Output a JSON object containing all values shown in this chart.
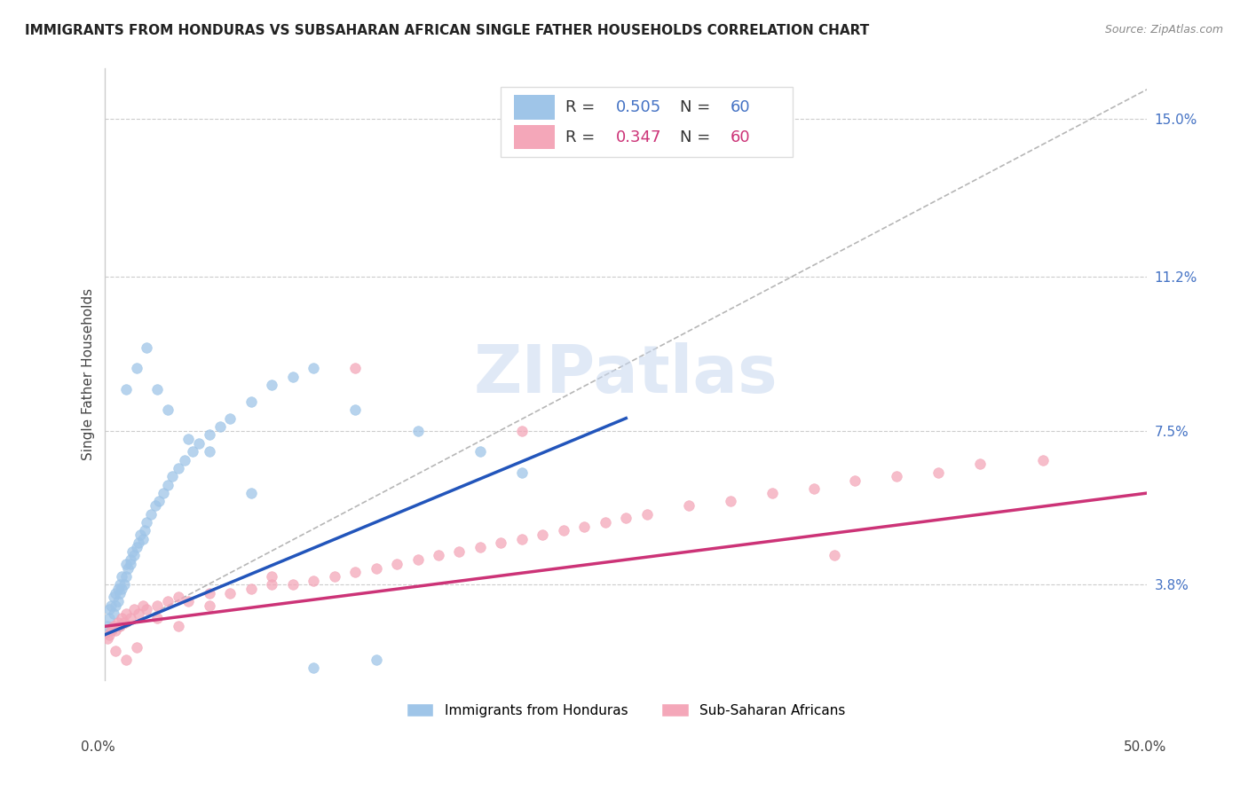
{
  "title": "IMMIGRANTS FROM HONDURAS VS SUBSAHARAN AFRICAN SINGLE FATHER HOUSEHOLDS CORRELATION CHART",
  "source": "Source: ZipAtlas.com",
  "ylabel": "Single Father Households",
  "ytick_values": [
    0.025,
    0.038,
    0.075,
    0.112,
    0.15
  ],
  "ytick_labels": [
    "",
    "3.8%",
    "7.5%",
    "11.2%",
    "15.0%"
  ],
  "xlim": [
    0.0,
    0.5
  ],
  "ylim": [
    0.015,
    0.162
  ],
  "blue_color": "#9fc5e8",
  "pink_color": "#f4a7b9",
  "blue_line_color": "#2255bb",
  "pink_line_color": "#cc3377",
  "dashed_line_color": "#aaaaaa",
  "watermark": "ZIPatlas",
  "watermark_color": "#c8d8f0",
  "blue_R": "0.505",
  "blue_N": "60",
  "pink_R": "0.347",
  "pink_N": "60",
  "blue_label": "Immigrants from Honduras",
  "pink_label": "Sub-Saharan Africans",
  "blue_x": [
    0.001,
    0.002,
    0.002,
    0.003,
    0.003,
    0.004,
    0.004,
    0.005,
    0.005,
    0.006,
    0.006,
    0.007,
    0.007,
    0.008,
    0.008,
    0.009,
    0.01,
    0.01,
    0.011,
    0.012,
    0.012,
    0.013,
    0.014,
    0.015,
    0.016,
    0.017,
    0.018,
    0.019,
    0.02,
    0.022,
    0.024,
    0.026,
    0.028,
    0.03,
    0.032,
    0.035,
    0.038,
    0.042,
    0.045,
    0.05,
    0.055,
    0.06,
    0.07,
    0.08,
    0.09,
    0.1,
    0.12,
    0.15,
    0.18,
    0.2,
    0.01,
    0.015,
    0.02,
    0.025,
    0.03,
    0.04,
    0.05,
    0.07,
    0.1,
    0.13
  ],
  "blue_y": [
    0.028,
    0.03,
    0.032,
    0.027,
    0.033,
    0.031,
    0.035,
    0.033,
    0.036,
    0.034,
    0.037,
    0.036,
    0.038,
    0.037,
    0.04,
    0.038,
    0.04,
    0.043,
    0.042,
    0.044,
    0.043,
    0.046,
    0.045,
    0.047,
    0.048,
    0.05,
    0.049,
    0.051,
    0.053,
    0.055,
    0.057,
    0.058,
    0.06,
    0.062,
    0.064,
    0.066,
    0.068,
    0.07,
    0.072,
    0.074,
    0.076,
    0.078,
    0.082,
    0.086,
    0.088,
    0.09,
    0.08,
    0.075,
    0.07,
    0.065,
    0.085,
    0.09,
    0.095,
    0.085,
    0.08,
    0.073,
    0.07,
    0.06,
    0.018,
    0.02
  ],
  "pink_x": [
    0.001,
    0.002,
    0.003,
    0.004,
    0.005,
    0.006,
    0.007,
    0.008,
    0.009,
    0.01,
    0.012,
    0.014,
    0.016,
    0.018,
    0.02,
    0.025,
    0.03,
    0.035,
    0.04,
    0.05,
    0.06,
    0.07,
    0.08,
    0.09,
    0.1,
    0.11,
    0.12,
    0.13,
    0.14,
    0.15,
    0.16,
    0.17,
    0.18,
    0.19,
    0.2,
    0.21,
    0.22,
    0.23,
    0.24,
    0.25,
    0.26,
    0.28,
    0.3,
    0.32,
    0.34,
    0.36,
    0.38,
    0.4,
    0.42,
    0.45,
    0.005,
    0.01,
    0.015,
    0.025,
    0.035,
    0.05,
    0.08,
    0.12,
    0.2,
    0.35
  ],
  "pink_y": [
    0.025,
    0.026,
    0.027,
    0.028,
    0.027,
    0.029,
    0.028,
    0.03,
    0.029,
    0.031,
    0.03,
    0.032,
    0.031,
    0.033,
    0.032,
    0.033,
    0.034,
    0.035,
    0.034,
    0.036,
    0.036,
    0.037,
    0.038,
    0.038,
    0.039,
    0.04,
    0.041,
    0.042,
    0.043,
    0.044,
    0.045,
    0.046,
    0.047,
    0.048,
    0.049,
    0.05,
    0.051,
    0.052,
    0.053,
    0.054,
    0.055,
    0.057,
    0.058,
    0.06,
    0.061,
    0.063,
    0.064,
    0.065,
    0.067,
    0.068,
    0.022,
    0.02,
    0.023,
    0.03,
    0.028,
    0.033,
    0.04,
    0.09,
    0.075,
    0.045
  ],
  "blue_line_x": [
    0.0,
    0.25
  ],
  "blue_line_y": [
    0.026,
    0.078
  ],
  "pink_line_x": [
    0.0,
    0.5
  ],
  "pink_line_y": [
    0.028,
    0.06
  ],
  "diag_line_x": [
    0.0,
    0.5
  ],
  "diag_line_y": [
    0.025,
    0.157
  ]
}
